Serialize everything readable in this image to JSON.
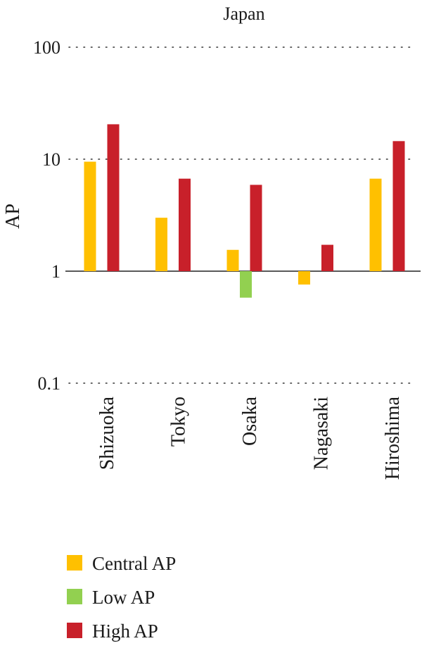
{
  "chart_data": {
    "type": "bar",
    "title": "Japan",
    "ylabel": "AP",
    "xlabel": "",
    "yscale": "log",
    "ylim": [
      0.1,
      100
    ],
    "yticks": [
      0.1,
      1,
      10,
      100
    ],
    "ytick_labels": [
      "0.1",
      "1",
      "10",
      "100"
    ],
    "baseline": 1,
    "grid": "dotted horizontal",
    "legend_position": "bottom-left",
    "categories": [
      "Shizuoka",
      "Tokyo",
      "Osaka",
      "Nagasaki",
      "Hiroshima"
    ],
    "series": [
      {
        "name": "Central AP",
        "color": "#FFC000",
        "values": [
          9.5,
          3.0,
          1.55,
          0.76,
          6.7
        ]
      },
      {
        "name": "Low AP",
        "color": "#92D050",
        "values": [
          null,
          null,
          0.58,
          null,
          null
        ]
      },
      {
        "name": "High AP",
        "color": "#C8202A",
        "values": [
          20.5,
          6.7,
          5.9,
          1.72,
          14.5
        ]
      }
    ]
  }
}
